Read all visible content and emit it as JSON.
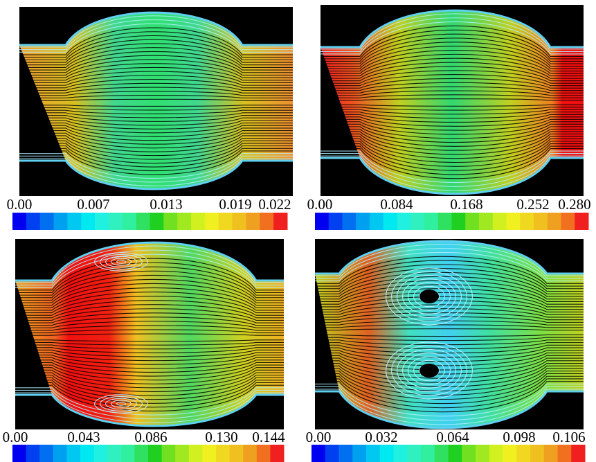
{
  "panels": [
    {
      "ticks": [
        "0.00",
        "0.007",
        "0.013",
        "0.019",
        "0.022"
      ]
    },
    {
      "ticks": [
        "0.00",
        "0.084",
        "0.168",
        "0.252",
        "0.280"
      ]
    },
    {
      "ticks": [
        "0.00",
        "0.043",
        "0.086",
        "0.130",
        "0.144"
      ]
    },
    {
      "ticks": [
        "0.00",
        "0.032",
        "0.064",
        "0.098",
        "0.106"
      ]
    }
  ]
}
